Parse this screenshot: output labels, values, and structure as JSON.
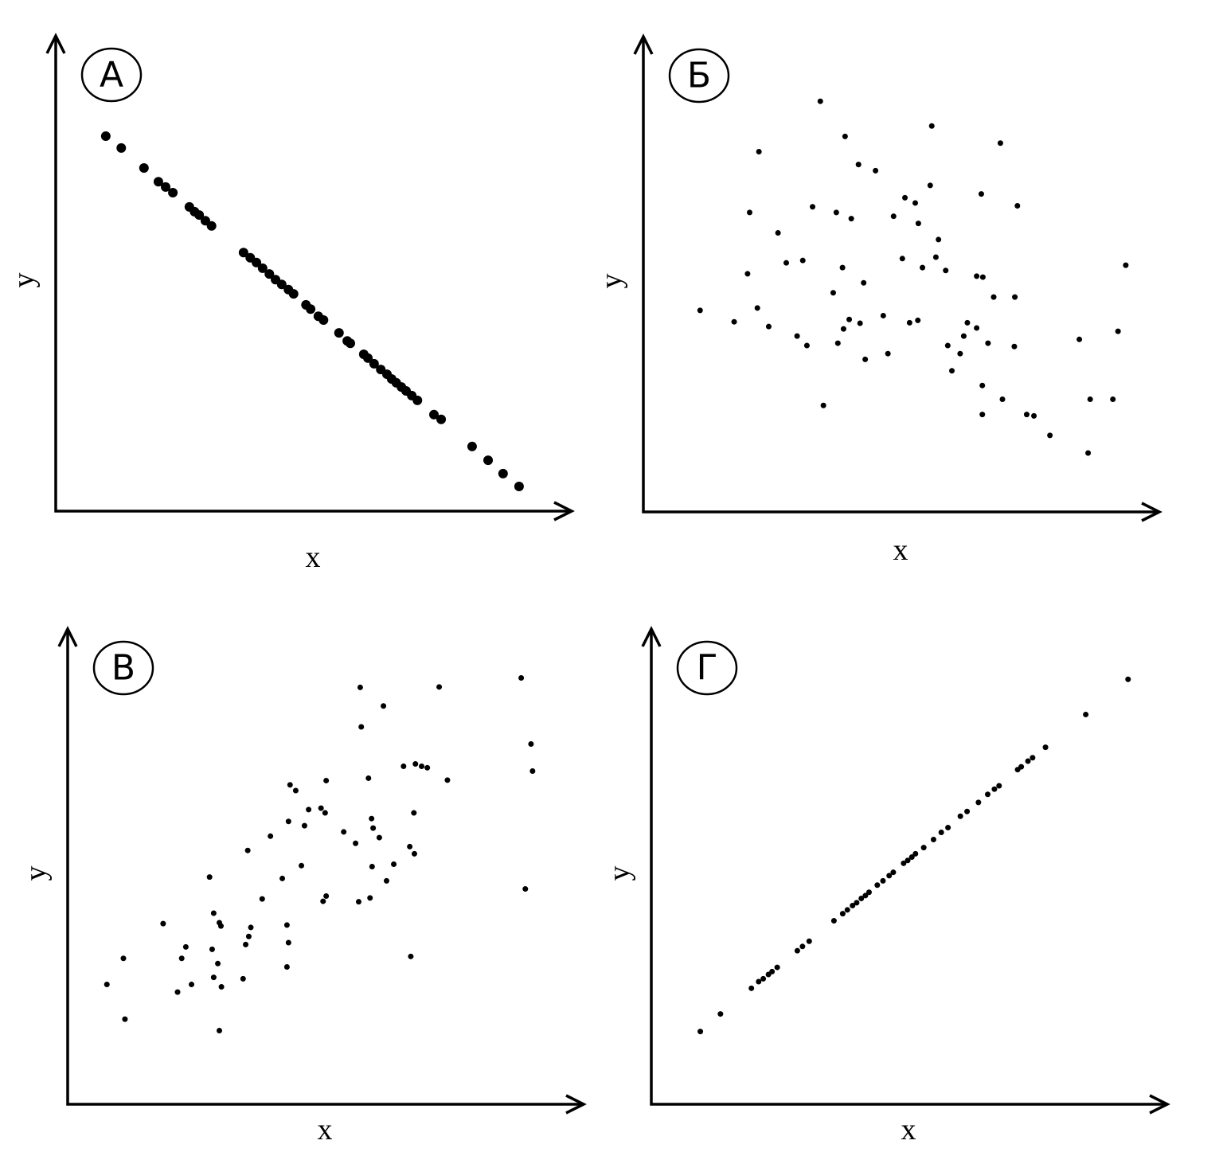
{
  "chart_data": [
    {
      "type": "scatter",
      "label": "А",
      "x_label": "x",
      "y_label": "y",
      "xlim": [
        0,
        100
      ],
      "ylim": [
        0,
        100
      ],
      "color": "#000000",
      "marker_size": 6,
      "x": [
        9.7,
        12.7,
        17.1,
        19.9,
        21.3,
        22.7,
        25.9,
        26.9,
        27.8,
        29.0,
        30.2,
        36.4,
        37.7,
        38.9,
        40.1,
        41.4,
        42.6,
        43.8,
        45.1,
        46.1,
        48.5,
        49.4,
        50.9,
        51.9,
        54.9,
        56.5,
        57.1,
        59.7,
        60.5,
        61.7,
        63.0,
        64.2,
        65.1,
        66.0,
        67.0,
        67.9,
        69.0,
        70.1,
        73.3,
        74.7,
        80.7,
        83.8,
        86.7,
        89.8
      ],
      "y": [
        78.9,
        76.4,
        72.2,
        69.3,
        68.2,
        67.0,
        64.0,
        63.0,
        62.3,
        61.1,
        60.0,
        54.4,
        53.3,
        52.3,
        51.1,
        49.9,
        48.7,
        47.7,
        46.6,
        45.7,
        43.4,
        42.5,
        41.0,
        40.2,
        37.5,
        35.8,
        35.3,
        33.0,
        32.2,
        31.0,
        29.8,
        28.8,
        27.8,
        27.0,
        26.1,
        25.3,
        24.3,
        23.3,
        20.3,
        19.3,
        13.6,
        10.7,
        7.9,
        5.2
      ]
    },
    {
      "type": "scatter",
      "label": "Б",
      "x_label": "x",
      "y_label": "y",
      "xlim": [
        0,
        100
      ],
      "ylim": [
        0,
        100
      ],
      "color": "#000000",
      "marker_size": 3.5,
      "x": [
        11.0,
        17.6,
        20.2,
        20.6,
        22.1,
        22.4,
        24.3,
        26.1,
        27.7,
        29.8,
        30.9,
        31.7,
        32.8,
        34.3,
        34.9,
        36.8,
        37.4,
        37.7,
        38.6,
        38.8,
        39.1,
        39.9,
        40.3,
        41.7,
        42.0,
        42.7,
        43.0,
        45.0,
        46.5,
        47.4,
        48.5,
        50.2,
        50.7,
        51.6,
        52.7,
        53.2,
        53.3,
        54.1,
        55.6,
        55.9,
        56.7,
        57.2,
        58.6,
        59.0,
        59.8,
        61.4,
        62.1,
        62.8,
        64.6,
        64.6,
        65.5,
        65.7,
        65.7,
        65.8,
        66.8,
        67.9,
        69.2,
        69.6,
        71.9,
        72.0,
        72.5,
        74.3,
        75.7,
        78.8,
        84.5,
        86.2,
        86.6,
        91.0,
        92.0,
        93.5
      ],
      "y": [
        42.4,
        40.0,
        50.1,
        63.0,
        42.9,
        75.8,
        39.0,
        58.7,
        52.4,
        37.0,
        52.9,
        35.0,
        64.2,
        86.4,
        22.4,
        46.1,
        63.0,
        35.5,
        51.4,
        38.5,
        79.0,
        40.5,
        61.7,
        73.1,
        39.7,
        48.2,
        32.1,
        71.8,
        41.3,
        33.3,
        62.2,
        53.3,
        66.1,
        39.8,
        65.0,
        40.3,
        60.7,
        51.4,
        68.7,
        81.2,
        53.6,
        57.3,
        50.8,
        35.0,
        29.7,
        33.3,
        37.0,
        39.8,
        49.6,
        38.7,
        66.9,
        26.6,
        20.5,
        49.4,
        35.5,
        45.2,
        77.6,
        23.7,
        34.8,
        45.2,
        64.4,
        20.5,
        20.2,
        16.1,
        36.3,
        12.4,
        23.7,
        23.7,
        38.0,
        51.9
      ]
    },
    {
      "type": "scatter",
      "label": "В",
      "x_label": "x",
      "y_label": "y",
      "xlim": [
        0,
        100
      ],
      "ylim": [
        0,
        100
      ],
      "color": "#000000",
      "marker_size": 3.5,
      "x": [
        7.6,
        10.8,
        11.1,
        18.5,
        21.3,
        22.1,
        22.9,
        24.0,
        27.5,
        28.0,
        28.3,
        28.3,
        29.1,
        29.4,
        29.7,
        29.4,
        29.8,
        34.0,
        34.5,
        34.9,
        35.1,
        35.5,
        37.7,
        39.3,
        41.6,
        42.5,
        42.5,
        42.8,
        42.8,
        43.1,
        44.2,
        45.3,
        45.9,
        46.7,
        49.1,
        49.5,
        49.9,
        50.1,
        50.1,
        53.5,
        55.8,
        56.4,
        56.7,
        56.9,
        58.3,
        58.6,
        58.9,
        59.0,
        59.2,
        60.4,
        61.2,
        61.8,
        63.2,
        65.1,
        66.3,
        66.5,
        67.1,
        67.2,
        67.4,
        68.6,
        69.7,
        72.0,
        73.6,
        87.9,
        88.7,
        89.8,
        90.1
      ],
      "y": [
        25.2,
        30.7,
        17.9,
        38.0,
        23.6,
        30.7,
        33.1,
        25.2,
        47.8,
        32.6,
        26.7,
        40.2,
        29.6,
        38.2,
        37.5,
        15.5,
        24.7,
        26.4,
        33.6,
        53.4,
        35.3,
        37.2,
        43.2,
        56.4,
        47.5,
        37.7,
        28.9,
        34.0,
        59.5,
        67.2,
        66.0,
        50.2,
        58.6,
        62.0,
        62.3,
        42.7,
        61.3,
        68.1,
        43.8,
        57.3,
        54.9,
        42.6,
        87.7,
        79.4,
        68.6,
        43.4,
        60.1,
        50.0,
        58.1,
        56.1,
        83.8,
        47.0,
        50.5,
        71.1,
        54.2,
        31.1,
        61.3,
        52.7,
        71.6,
        71.1,
        70.8,
        87.8,
        68.2,
        89.7,
        45.3,
        75.8,
        70.1
      ]
    },
    {
      "type": "scatter",
      "label": "Г",
      "x_label": "x",
      "y_label": "y",
      "xlim": [
        0,
        100
      ],
      "ylim": [
        0,
        100
      ],
      "color": "#000000",
      "marker_size": 3.5,
      "x": [
        9.5,
        13.4,
        19.4,
        20.8,
        21.7,
        22.7,
        23.4,
        24.4,
        28.3,
        29.3,
        30.6,
        35.4,
        37.1,
        38.0,
        39.0,
        39.8,
        40.7,
        41.5,
        42.2,
        43.8,
        44.9,
        46.1,
        46.9,
        48.9,
        49.7,
        50.5,
        51.2,
        52.8,
        54.7,
        56.2,
        57.5,
        59.9,
        61.2,
        63.4,
        65.2,
        66.5,
        67.4,
        71.0,
        71.7,
        73.0,
        73.9,
        76.4,
        84.2,
        92.4
      ],
      "y": [
        15.3,
        19.0,
        24.4,
        25.8,
        26.4,
        27.3,
        27.9,
        28.8,
        32.3,
        33.2,
        34.3,
        38.6,
        40.1,
        40.9,
        41.8,
        42.4,
        43.3,
        43.9,
        44.6,
        46.1,
        47.0,
        48.1,
        48.8,
        50.7,
        51.3,
        52.0,
        52.7,
        54.0,
        55.7,
        57.2,
        58.2,
        60.6,
        61.6,
        63.5,
        65.2,
        66.3,
        67.0,
        70.4,
        71.0,
        72.2,
        72.9,
        75.1,
        82.0,
        89.4
      ]
    }
  ]
}
